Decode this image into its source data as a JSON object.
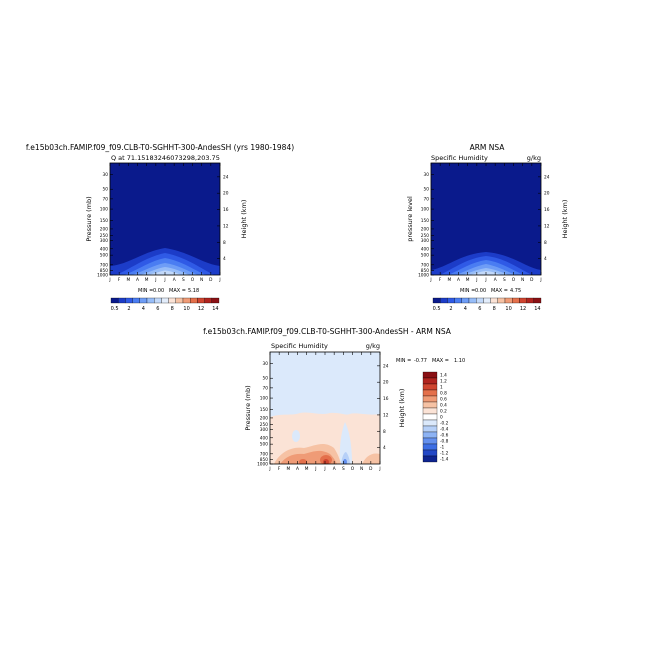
{
  "chart_data": [
    {
      "type": "heatmap",
      "title": "f.e15b03ch.FAMIP.f09_f09.CLB-T0-SGHHT-300-AndesSH (yrs 1980-1984)",
      "subtitle": "Q at 71.15183246073298,203.75",
      "xlabel": "",
      "ylabel": "Pressure (mb)",
      "y2label": "Height (km)",
      "x_ticks": [
        "J",
        "F",
        "M",
        "A",
        "M",
        "J",
        "J",
        "A",
        "S",
        "O",
        "N",
        "D",
        "J"
      ],
      "y_ticks": [
        "30",
        "50",
        "70",
        "100",
        "150",
        "200",
        "250",
        "300",
        "400",
        "500",
        "700",
        "850",
        "1000"
      ],
      "y2_ticks": [
        "24",
        "20",
        "16",
        "12",
        "8",
        "4"
      ],
      "min_label": "MIN =",
      "min_value": "0.00",
      "max_label": "MAX =",
      "max_value": "5.18",
      "min": 0.0,
      "max": 5.18,
      "peak_month": "J"
    },
    {
      "type": "heatmap",
      "title": "ARM NSA",
      "left_subtitle": "Specific Humidity",
      "right_subtitle": "g/kg",
      "xlabel": "",
      "ylabel": "pressure level",
      "y2label": "Height (km)",
      "x_ticks": [
        "J",
        "F",
        "M",
        "A",
        "M",
        "J",
        "J",
        "A",
        "S",
        "O",
        "N",
        "D",
        "J"
      ],
      "y_ticks": [
        "30",
        "50",
        "70",
        "100",
        "150",
        "200",
        "250",
        "300",
        "400",
        "500",
        "700",
        "850",
        "1000"
      ],
      "y2_ticks": [
        "24",
        "20",
        "16",
        "12",
        "8",
        "4"
      ],
      "min_label": "MIN =",
      "min_value": "0.00",
      "max_label": "MAX =",
      "max_value": "4.75",
      "min": 0.0,
      "max": 4.75
    },
    {
      "type": "heatmap",
      "title": "f.e15b03ch.FAMIP.f09_f09.CLB-T0-SGHHT-300-AndesSH - ARM NSA",
      "left_subtitle": "Specific Humidity",
      "right_subtitle": "g/kg",
      "xlabel": "",
      "ylabel": "Pressure (mb)",
      "y2label": "Height (km)",
      "x_ticks": [
        "J",
        "F",
        "M",
        "A",
        "M",
        "J",
        "J",
        "A",
        "S",
        "O",
        "N",
        "D",
        "J"
      ],
      "y_ticks": [
        "30",
        "50",
        "70",
        "100",
        "150",
        "200",
        "250",
        "300",
        "400",
        "500",
        "700",
        "850",
        "1000"
      ],
      "y2_ticks": [
        "24",
        "20",
        "16",
        "12",
        "8",
        "4"
      ],
      "min_label": "MIN =",
      "min_value": "-0.77",
      "max_label": "MAX =",
      "max_value": "1.10",
      "min": -0.77,
      "max": 1.1
    }
  ],
  "colorbars": {
    "absolute": {
      "labels": [
        "0.5",
        "2",
        "4",
        "6",
        "8",
        "10",
        "12",
        "14"
      ],
      "colors": [
        "#0a1a8c",
        "#1c3cc8",
        "#2f5ae6",
        "#4a7df2",
        "#6e9df6",
        "#97bdf8",
        "#c2d9fa",
        "#e3edfb",
        "#fbe3d6",
        "#f6c2a4",
        "#ef9b76",
        "#e4704b",
        "#cf4530",
        "#b0241f",
        "#8a1014"
      ]
    },
    "difference": {
      "labels": [
        "1.4",
        "1.2",
        "1",
        "0.8",
        "0.6",
        "0.4",
        "0.2",
        "0",
        "-0.2",
        "-0.4",
        "-0.6",
        "-0.8",
        "-1",
        "-1.2",
        "-1.4"
      ],
      "colors": [
        "#8a1014",
        "#b0241f",
        "#cf4530",
        "#e4704b",
        "#ef9b76",
        "#f6c2a4",
        "#fbe3d6",
        "#ffffff",
        "#dbe9fb",
        "#b6d0f8",
        "#8db3f4",
        "#6490ee",
        "#3d6ee4",
        "#2348c6",
        "#0e2490"
      ]
    }
  }
}
